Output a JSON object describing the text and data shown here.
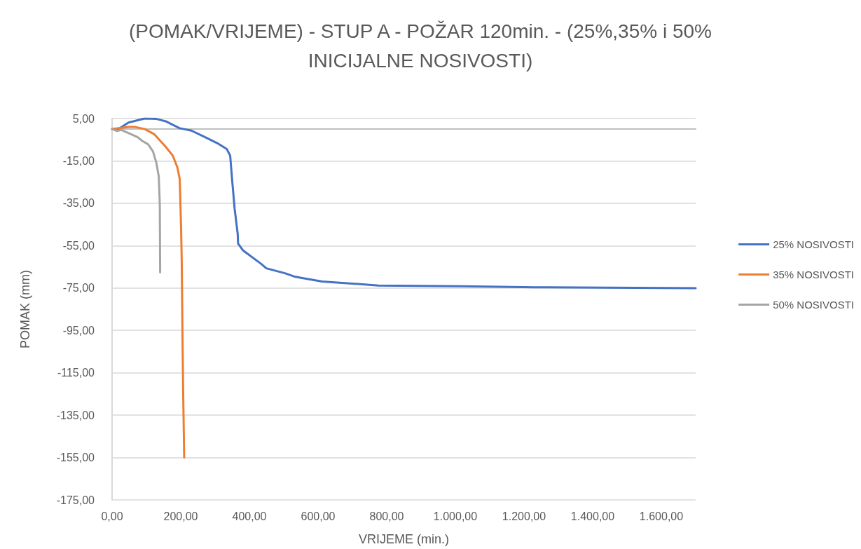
{
  "chart_data": {
    "type": "line",
    "title": "(POMAK/VRIJEME) - STUP A - POŽAR 120min. - (25%,35% i 50%\nINICIJALNE NOSIVOSTI)",
    "xlabel": "VRIJEME (min.)",
    "ylabel": "POMAK (mm)",
    "xlim": [
      0,
      1700
    ],
    "ylim": [
      -175,
      5
    ],
    "xticks": [
      {
        "value": 0,
        "label": "0,00"
      },
      {
        "value": 200,
        "label": "200,00"
      },
      {
        "value": 400,
        "label": "400,00"
      },
      {
        "value": 600,
        "label": "600,00"
      },
      {
        "value": 800,
        "label": "800,00"
      },
      {
        "value": 1000,
        "label": "1.000,00"
      },
      {
        "value": 1200,
        "label": "1.200,00"
      },
      {
        "value": 1400,
        "label": "1.400,00"
      },
      {
        "value": 1600,
        "label": "1.600,00"
      }
    ],
    "yticks": [
      {
        "value": 5,
        "label": "5,00"
      },
      {
        "value": -15,
        "label": "-15,00"
      },
      {
        "value": -35,
        "label": "-35,00"
      },
      {
        "value": -55,
        "label": "-55,00"
      },
      {
        "value": -75,
        "label": "-75,00"
      },
      {
        "value": -95,
        "label": "-95,00"
      },
      {
        "value": -115,
        "label": "-115,00"
      },
      {
        "value": -135,
        "label": "-135,00"
      },
      {
        "value": -155,
        "label": "-155,00"
      },
      {
        "value": -175,
        "label": "-175,00"
      }
    ],
    "grid": "y",
    "legend": "right",
    "marker": "none",
    "line_style": "solid",
    "series": [
      {
        "name": "25% NOSIVOSTI",
        "color": "#4472c4",
        "x": [
          0,
          20,
          48,
          95,
          129,
          156,
          197,
          231,
          272,
          306,
          334,
          344,
          350,
          357,
          366,
          367,
          381,
          435,
          449,
          503,
          531,
          571,
          612,
          776,
          1020,
          1265,
          1700
        ],
        "values": [
          0,
          0.2,
          3.1,
          5,
          4.8,
          3.7,
          0.4,
          -0.7,
          -3.9,
          -6.6,
          -9.4,
          -12.5,
          -24.6,
          -37.6,
          -49.6,
          -54,
          -57.2,
          -63.7,
          -65.7,
          -68,
          -69.6,
          -70.8,
          -71.9,
          -73.8,
          -74.2,
          -74.7,
          -75.1
        ]
      },
      {
        "name": "35% NOSIVOSTI",
        "color": "#ed7d31",
        "x": [
          0,
          48,
          68,
          95,
          122,
          156,
          177,
          190,
          197,
          201,
          203,
          205,
          207,
          210
        ],
        "values": [
          0,
          1,
          1,
          0,
          -2.3,
          -8.3,
          -12.6,
          -18,
          -23.5,
          -46.4,
          -63.7,
          -96.4,
          -123.4,
          -155
        ]
      },
      {
        "name": "50% NOSIVOSTI",
        "color": "#a5a5a5",
        "x": [
          0,
          14,
          27,
          61,
          75,
          88,
          105,
          119,
          129,
          136,
          139,
          140
        ],
        "values": [
          0,
          -0.9,
          -0.4,
          -2.8,
          -3.9,
          -5.6,
          -7.2,
          -10.5,
          -15.9,
          -22.4,
          -35.5,
          -67.6
        ]
      }
    ]
  }
}
